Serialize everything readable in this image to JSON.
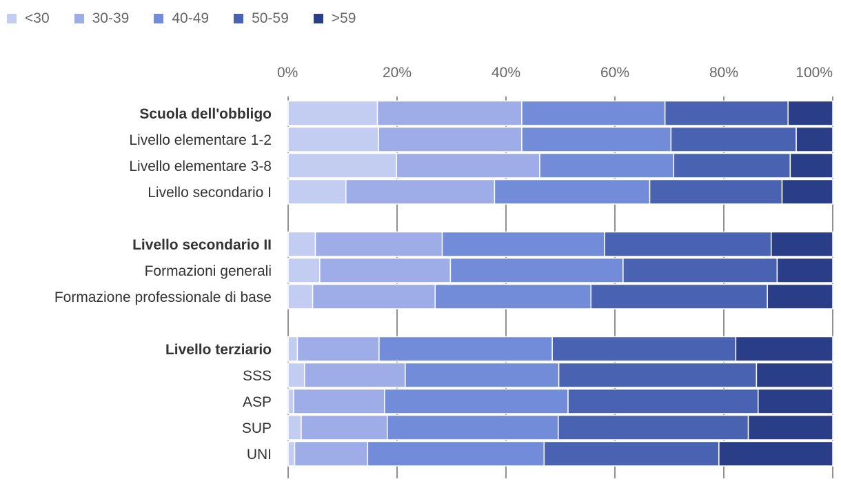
{
  "chart_data": {
    "type": "bar",
    "orientation": "horizontal",
    "stacked": true,
    "percent": true,
    "title": "",
    "xlabel": "",
    "ylabel": "",
    "xlim": [
      0,
      100
    ],
    "x_ticks": [
      "0%",
      "20%",
      "40%",
      "60%",
      "80%",
      "100%"
    ],
    "legend_position": "top-left",
    "grid": true,
    "series": [
      {
        "name": "<30",
        "color": "#c3cdf1"
      },
      {
        "name": "30-39",
        "color": "#9eade7"
      },
      {
        "name": "40-49",
        "color": "#728cd9"
      },
      {
        "name": "50-59",
        "color": "#4a62b2"
      },
      {
        "name": ">59",
        "color": "#2a3e88"
      }
    ],
    "groups": [
      {
        "rows": [
          {
            "label": "Scuola dell'obbligo",
            "bold": true,
            "values": [
              16.4,
              26.5,
              26.3,
              22.6,
              8.2
            ]
          },
          {
            "label": "Livello elementare 1-2",
            "bold": false,
            "values": [
              16.6,
              26.3,
              27.4,
              23.0,
              6.7
            ]
          },
          {
            "label": "Livello elementare 3-8",
            "bold": false,
            "values": [
              19.9,
              26.3,
              24.6,
              21.4,
              7.8
            ]
          },
          {
            "label": "Livello secondario I",
            "bold": false,
            "values": [
              10.6,
              27.3,
              28.5,
              24.3,
              9.3
            ]
          }
        ]
      },
      {
        "rows": [
          {
            "label": "Livello secondario II",
            "bold": true,
            "values": [
              5.0,
              23.3,
              29.8,
              30.6,
              11.3
            ]
          },
          {
            "label": "Formazioni generali",
            "bold": false,
            "values": [
              5.8,
              24.0,
              31.7,
              28.3,
              10.2
            ]
          },
          {
            "label": "Formazione professionale di base",
            "bold": false,
            "values": [
              4.5,
              22.5,
              28.6,
              32.4,
              12.0
            ]
          }
        ]
      },
      {
        "rows": [
          {
            "label": "Livello terziario",
            "bold": true,
            "values": [
              1.7,
              15.0,
              31.8,
              33.7,
              17.8
            ]
          },
          {
            "label": "SSS",
            "bold": false,
            "values": [
              3.0,
              18.5,
              28.2,
              36.3,
              14.0
            ]
          },
          {
            "label": "ASP",
            "bold": false,
            "values": [
              1.0,
              16.7,
              33.7,
              34.9,
              13.7
            ]
          },
          {
            "label": "SUP",
            "bold": false,
            "values": [
              2.4,
              15.8,
              31.4,
              34.9,
              15.5
            ]
          },
          {
            "label": "UNI",
            "bold": false,
            "values": [
              1.2,
              13.4,
              32.4,
              32.1,
              20.9
            ]
          }
        ]
      }
    ]
  }
}
